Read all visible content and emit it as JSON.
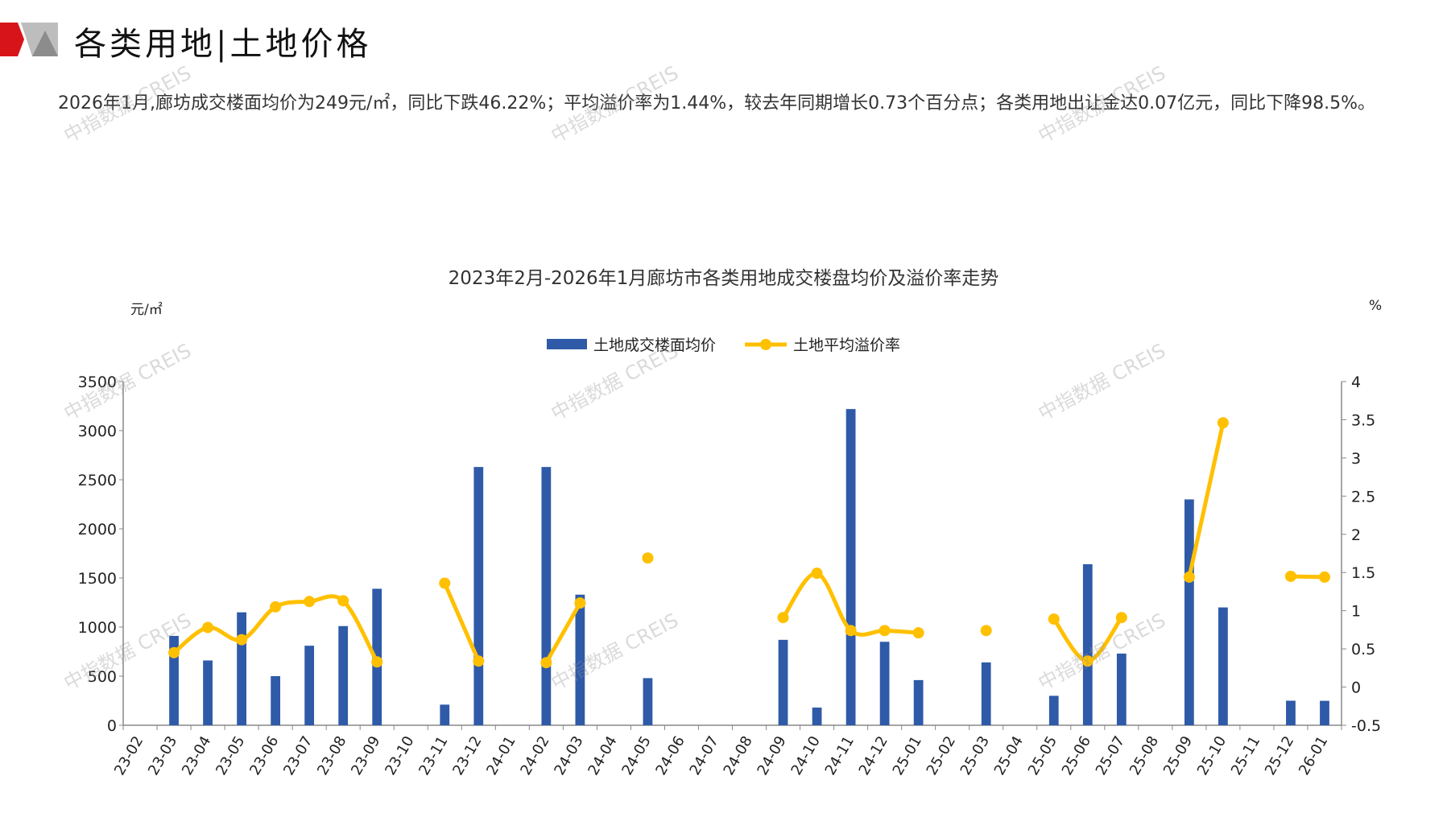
{
  "header": {
    "title": "各类用地|土地价格"
  },
  "summary": "2026年1月,廊坊成交楼面均价为249元/㎡，同比下跌46.22%；平均溢价率为1.44%，较去年同期增长0.73个百分点；各类用地出让金达0.07亿元，同比下降98.5%。",
  "watermark": "中指数据 CREIS",
  "colors": {
    "bar": "#2E5AA8",
    "line": "#FFC000",
    "accent": "#D7141A"
  },
  "chart_data": {
    "type": "bar+line",
    "title": "2023年2月-2026年1月廊坊市各类用地成交楼盘均价及溢价率走势",
    "ylabel_left": "元/㎡",
    "ylabel_right": "%",
    "ylim_left": [
      0,
      3500
    ],
    "yticks_left": [
      "0",
      "500",
      "1000",
      "1500",
      "2000",
      "2500",
      "3000",
      "3500"
    ],
    "ylim_right": [
      -0.5,
      4
    ],
    "yticks_right": [
      "-0.5",
      "0",
      "0.5",
      "1",
      "1.5",
      "2",
      "2.5",
      "3",
      "3.5",
      "4"
    ],
    "legend_position": "top",
    "grid": false,
    "categories": [
      "23-02",
      "23-03",
      "23-04",
      "23-05",
      "23-06",
      "23-07",
      "23-08",
      "23-09",
      "23-10",
      "23-11",
      "23-12",
      "24-01",
      "24-02",
      "24-03",
      "24-04",
      "24-05",
      "24-06",
      "24-07",
      "24-08",
      "24-09",
      "24-10",
      "24-11",
      "24-12",
      "25-01",
      "25-02",
      "25-03",
      "25-04",
      "25-05",
      "25-06",
      "25-07",
      "25-08",
      "25-09",
      "25-10",
      "25-11",
      "25-12",
      "26-01"
    ],
    "series": [
      {
        "name": "土地成交楼面均价",
        "type": "bar",
        "axis": "left",
        "values": [
          null,
          910,
          660,
          1150,
          500,
          810,
          1010,
          1390,
          null,
          210,
          2630,
          null,
          2630,
          1330,
          null,
          480,
          null,
          null,
          null,
          870,
          180,
          3220,
          850,
          460,
          null,
          640,
          null,
          300,
          1640,
          730,
          null,
          2300,
          1200,
          null,
          250,
          249
        ]
      },
      {
        "name": "土地平均溢价率",
        "type": "line",
        "axis": "right",
        "values": [
          null,
          0.45,
          0.78,
          0.62,
          1.05,
          1.12,
          1.13,
          0.33,
          null,
          1.36,
          0.34,
          null,
          0.32,
          1.1,
          null,
          1.69,
          null,
          null,
          null,
          0.91,
          1.49,
          0.74,
          0.74,
          0.71,
          null,
          0.74,
          null,
          0.89,
          0.34,
          0.91,
          null,
          1.44,
          3.46,
          null,
          1.45,
          1.44
        ]
      }
    ]
  }
}
